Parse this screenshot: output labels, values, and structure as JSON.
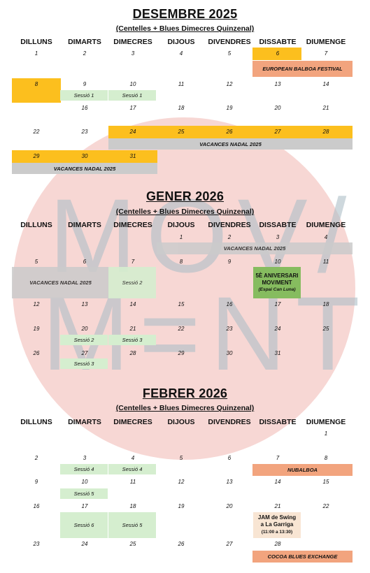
{
  "watermark": {
    "line1": "MOV/",
    "line2": "M=NT"
  },
  "weekdays": [
    "DILLUNS",
    "DIMARTS",
    "DIMECRES",
    "DIJOUS",
    "DIVENDRES",
    "DISSABTE",
    "DIUMENGE"
  ],
  "months": [
    {
      "title": "DESEMBRE 2025",
      "subtitle": "(Centelles + Blues Dimecres Quinzenal)",
      "days": [
        {
          "d": "1",
          "c": 0,
          "r": 0
        },
        {
          "d": "2",
          "c": 1,
          "r": 0
        },
        {
          "d": "3",
          "c": 2,
          "r": 0
        },
        {
          "d": "4",
          "c": 3,
          "r": 0
        },
        {
          "d": "5",
          "c": 4,
          "r": 0
        },
        {
          "d": "6",
          "c": 5,
          "r": 0
        },
        {
          "d": "7",
          "c": 6,
          "r": 0
        },
        {
          "d": "8",
          "c": 0,
          "r": 1
        },
        {
          "d": "9",
          "c": 1,
          "r": 1
        },
        {
          "d": "10",
          "c": 2,
          "r": 1
        },
        {
          "d": "11",
          "c": 3,
          "r": 1
        },
        {
          "d": "12",
          "c": 4,
          "r": 1
        },
        {
          "d": "13",
          "c": 5,
          "r": 1
        },
        {
          "d": "14",
          "c": 6,
          "r": 1
        },
        {
          "d": "16",
          "c": 1,
          "r": 2
        },
        {
          "d": "17",
          "c": 2,
          "r": 2
        },
        {
          "d": "18",
          "c": 3,
          "r": 2
        },
        {
          "d": "19",
          "c": 4,
          "r": 2
        },
        {
          "d": "20",
          "c": 5,
          "r": 2
        },
        {
          "d": "21",
          "c": 6,
          "r": 2
        },
        {
          "d": "22",
          "c": 0,
          "r": 3
        },
        {
          "d": "23",
          "c": 1,
          "r": 3
        },
        {
          "d": "24",
          "c": 2,
          "r": 3
        },
        {
          "d": "25",
          "c": 3,
          "r": 3
        },
        {
          "d": "26",
          "c": 4,
          "r": 3
        },
        {
          "d": "27",
          "c": 5,
          "r": 3
        },
        {
          "d": "28",
          "c": 6,
          "r": 3
        },
        {
          "d": "29",
          "c": 0,
          "r": 4
        },
        {
          "d": "30",
          "c": 1,
          "r": 4
        },
        {
          "d": "31",
          "c": 2,
          "r": 4
        }
      ],
      "events": [
        {
          "label": "EUROPEAN BALBOA FESTIVAL"
        },
        {
          "label": "Sessió 1"
        },
        {
          "label": "Sessió 1"
        },
        {
          "label": "VACANCES NADAL 2025"
        },
        {
          "label": "VACANCES NADAL 2025"
        }
      ]
    },
    {
      "title": "GENER 2026",
      "subtitle": "(Centelles + Blues Dimecres Quinzenal)",
      "days": [
        {
          "d": "1",
          "c": 3,
          "r": 0
        },
        {
          "d": "2",
          "c": 4,
          "r": 0
        },
        {
          "d": "3",
          "c": 5,
          "r": 0
        },
        {
          "d": "4",
          "c": 6,
          "r": 0
        },
        {
          "d": "5",
          "c": 0,
          "r": 1
        },
        {
          "d": "6",
          "c": 1,
          "r": 1
        },
        {
          "d": "7",
          "c": 2,
          "r": 1
        },
        {
          "d": "8",
          "c": 3,
          "r": 1
        },
        {
          "d": "9",
          "c": 4,
          "r": 1
        },
        {
          "d": "10",
          "c": 5,
          "r": 1
        },
        {
          "d": "11",
          "c": 6,
          "r": 1
        },
        {
          "d": "12",
          "c": 0,
          "r": 2
        },
        {
          "d": "13",
          "c": 1,
          "r": 2
        },
        {
          "d": "14",
          "c": 2,
          "r": 2
        },
        {
          "d": "15",
          "c": 3,
          "r": 2
        },
        {
          "d": "16",
          "c": 4,
          "r": 2
        },
        {
          "d": "17",
          "c": 5,
          "r": 2
        },
        {
          "d": "18",
          "c": 6,
          "r": 2
        },
        {
          "d": "19",
          "c": 0,
          "r": 3
        },
        {
          "d": "20",
          "c": 1,
          "r": 3
        },
        {
          "d": "21",
          "c": 2,
          "r": 3
        },
        {
          "d": "22",
          "c": 3,
          "r": 3
        },
        {
          "d": "23",
          "c": 4,
          "r": 3
        },
        {
          "d": "24",
          "c": 5,
          "r": 3
        },
        {
          "d": "25",
          "c": 6,
          "r": 3
        },
        {
          "d": "26",
          "c": 0,
          "r": 4
        },
        {
          "d": "27",
          "c": 1,
          "r": 4
        },
        {
          "d": "28",
          "c": 2,
          "r": 4
        },
        {
          "d": "29",
          "c": 3,
          "r": 4
        },
        {
          "d": "30",
          "c": 4,
          "r": 4
        },
        {
          "d": "31",
          "c": 5,
          "r": 4
        }
      ],
      "events": [
        {
          "label": "VACANCES NADAL 2025"
        },
        {
          "label": "VACANCES NADAL 2025"
        },
        {
          "label": "Sessió 2"
        },
        {
          "label": "5È ANIVERSARI MOV/MENT",
          "sub": "(Espai Can Luna)"
        },
        {
          "label": "Sessió 2"
        },
        {
          "label": "Sessió 3"
        },
        {
          "label": "Sessió 3"
        }
      ]
    },
    {
      "title": "FEBRER 2026",
      "subtitle": "(Centelles + Blues Dimecres Quinzenal)",
      "days": [
        {
          "d": "1",
          "c": 6,
          "r": 0
        },
        {
          "d": "2",
          "c": 0,
          "r": 1
        },
        {
          "d": "3",
          "c": 1,
          "r": 1
        },
        {
          "d": "4",
          "c": 2,
          "r": 1
        },
        {
          "d": "5",
          "c": 3,
          "r": 1
        },
        {
          "d": "6",
          "c": 4,
          "r": 1
        },
        {
          "d": "7",
          "c": 5,
          "r": 1
        },
        {
          "d": "8",
          "c": 6,
          "r": 1
        },
        {
          "d": "9",
          "c": 0,
          "r": 2
        },
        {
          "d": "10",
          "c": 1,
          "r": 2
        },
        {
          "d": "11",
          "c": 2,
          "r": 2
        },
        {
          "d": "12",
          "c": 3,
          "r": 2
        },
        {
          "d": "13",
          "c": 4,
          "r": 2
        },
        {
          "d": "14",
          "c": 5,
          "r": 2
        },
        {
          "d": "15",
          "c": 6,
          "r": 2
        },
        {
          "d": "16",
          "c": 0,
          "r": 3
        },
        {
          "d": "17",
          "c": 1,
          "r": 3
        },
        {
          "d": "18",
          "c": 2,
          "r": 3
        },
        {
          "d": "19",
          "c": 3,
          "r": 3
        },
        {
          "d": "20",
          "c": 4,
          "r": 3
        },
        {
          "d": "21",
          "c": 5,
          "r": 3
        },
        {
          "d": "22",
          "c": 6,
          "r": 3
        },
        {
          "d": "23",
          "c": 0,
          "r": 4
        },
        {
          "d": "24",
          "c": 1,
          "r": 4
        },
        {
          "d": "25",
          "c": 2,
          "r": 4
        },
        {
          "d": "26",
          "c": 3,
          "r": 4
        },
        {
          "d": "27",
          "c": 4,
          "r": 4
        },
        {
          "d": "28",
          "c": 5,
          "r": 4
        }
      ],
      "events": [
        {
          "label": "Sessió 4"
        },
        {
          "label": "Sessió 4"
        },
        {
          "label": "NUBALBOA"
        },
        {
          "label": "Sessió 5"
        },
        {
          "label": "Sessió 6"
        },
        {
          "label": "Sessió 5"
        },
        {
          "label": "JAM de Swing a La Garriga",
          "sub": "(11:00 a 13:30)"
        },
        {
          "label": "COCOA BLUES EXCHANGE"
        }
      ]
    }
  ],
  "colors": {
    "highlight": "#fcbf1e",
    "festival": "#f2a47e",
    "holiday": "#cbcbcb",
    "session": "#d5eecf",
    "anniversary": "#86bc5f",
    "jam": "#f8e5d3",
    "watermark_circle": "#f6d3cf"
  }
}
